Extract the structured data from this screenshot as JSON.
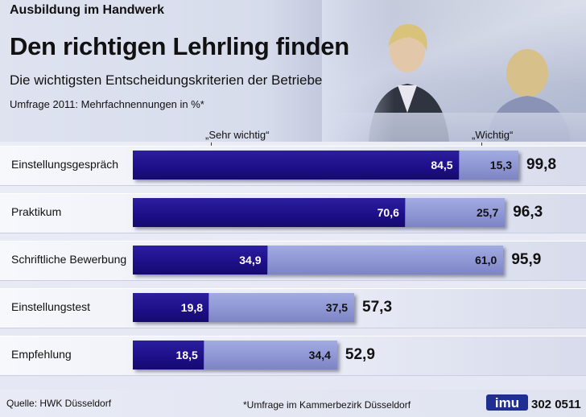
{
  "header": {
    "kicker": "Ausbildung im Handwerk",
    "headline": "Den richtigen Lehrling finden",
    "subtitle": "Die wichtigsten Entscheidungskriterien der Betriebe",
    "note": "Umfrage 2011: Mehrfachnennungen in %*"
  },
  "legend": {
    "very_important": "„Sehr wichtig“",
    "important": "„Wichtig“"
  },
  "chart_data": {
    "type": "bar",
    "orientation": "horizontal",
    "stacked": true,
    "categories": [
      "Einstellungsgespräch",
      "Praktikum",
      "Schriftliche Bewerbung",
      "Einstellungstest",
      "Empfehlung"
    ],
    "series": [
      {
        "name": "„Sehr wichtig“",
        "color": "#1e0f8a",
        "values": [
          84.5,
          70.6,
          34.9,
          19.8,
          18.5
        ],
        "labels": [
          "84,5",
          "70,6",
          "34,9",
          "19,8",
          "18,5"
        ]
      },
      {
        "name": "„Wichtig“",
        "color": "#8e96d4",
        "values": [
          15.3,
          25.7,
          61.0,
          37.5,
          34.4
        ],
        "labels": [
          "15,3",
          "25,7",
          "61,0",
          "37,5",
          "34,4"
        ]
      }
    ],
    "totals": [
      99.8,
      96.3,
      95.9,
      57.3,
      52.9
    ],
    "total_labels": [
      "99,8",
      "96,3",
      "95,9",
      "57,3",
      "52,9"
    ],
    "xlim": [
      0,
      100
    ],
    "grid": false
  },
  "footer": {
    "source": "Quelle: HWK Düsseldorf",
    "footnote": "*Umfrage im Kammerbezirk Düsseldorf",
    "logo": "imu",
    "code": "302 0511"
  }
}
